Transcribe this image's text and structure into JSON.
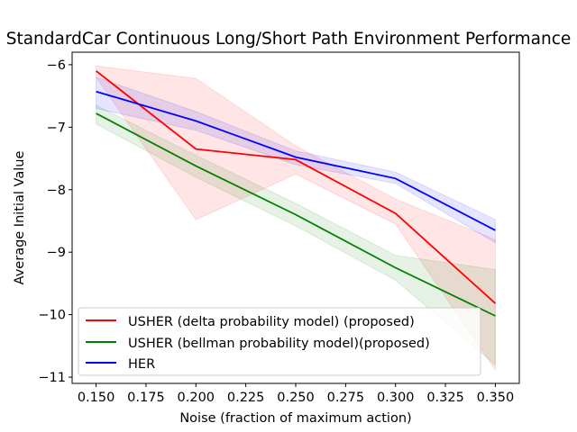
{
  "chart_data": {
    "type": "line",
    "title": "StandardCar Continuous Long/Short Path Environment Performance",
    "xlabel": "Noise (fraction of maximum action)",
    "ylabel": "Average Initial Value",
    "xlim": [
      0.138,
      0.362
    ],
    "ylim": [
      -11.1,
      -5.8
    ],
    "xticks": [
      0.15,
      0.175,
      0.2,
      0.225,
      0.25,
      0.275,
      0.3,
      0.325,
      0.35
    ],
    "xtick_labels": [
      "0.150",
      "0.175",
      "0.200",
      "0.225",
      "0.250",
      "0.275",
      "0.300",
      "0.325",
      "0.350"
    ],
    "yticks": [
      -6,
      -7,
      -8,
      -9,
      -10,
      -11
    ],
    "ytick_labels": [
      "−6",
      "−7",
      "−8",
      "−9",
      "−10",
      "−11"
    ],
    "legend_position": "lower-left",
    "x": [
      0.15,
      0.2,
      0.25,
      0.3,
      0.35
    ],
    "series": [
      {
        "name": "USHER (delta probability model) (proposed)",
        "color": "#ff0000",
        "values": [
          -6.1,
          -7.35,
          -7.52,
          -8.38,
          -9.82
        ],
        "lower": [
          -6.2,
          -8.48,
          -7.75,
          -8.55,
          -10.88
        ],
        "upper": [
          -6.02,
          -6.22,
          -7.3,
          -8.15,
          -8.8
        ]
      },
      {
        "name": "USHER (bellman probability model)(proposed)",
        "color": "#008000",
        "values": [
          -6.78,
          -7.62,
          -8.4,
          -9.25,
          -10.02
        ],
        "lower": [
          -6.95,
          -7.8,
          -8.58,
          -9.45,
          -10.8
        ],
        "upper": [
          -6.65,
          -7.45,
          -8.22,
          -9.05,
          -9.28
        ]
      },
      {
        "name": "HER",
        "color": "#0000ff",
        "values": [
          -6.43,
          -6.9,
          -7.48,
          -7.82,
          -8.65
        ],
        "lower": [
          -6.7,
          -7.05,
          -7.6,
          -7.9,
          -8.85
        ],
        "upper": [
          -6.2,
          -6.75,
          -7.38,
          -7.72,
          -8.48
        ]
      }
    ]
  }
}
